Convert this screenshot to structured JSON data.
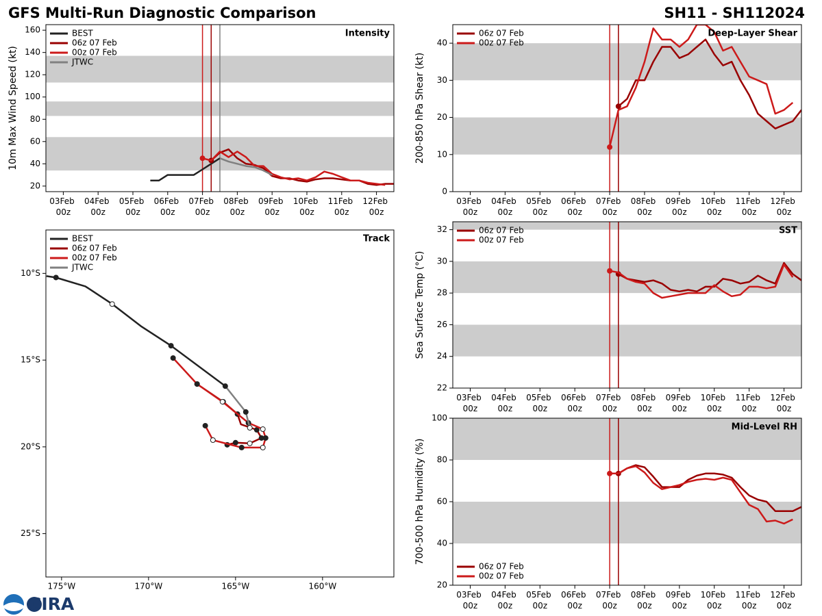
{
  "title": "GFS Multi-Run Diagnostic Comparison",
  "storm": "SH11 - SH112024",
  "logo": "CIRA",
  "chart_data": [
    {
      "type": "line",
      "title": "Intensity",
      "ylabel": "10m Max Wind Speed (kt)",
      "x": [
        "05Feb 12z",
        "05Feb 18z",
        "06Feb 00z",
        "06Feb 06z",
        "06Feb 12z",
        "06Feb 18z",
        "07Feb 00z",
        "07Feb 06z",
        "07Feb 12z",
        "07Feb 18z",
        "08Feb 00z",
        "08Feb 06z",
        "08Feb 12z",
        "08Feb 18z",
        "09Feb 00z",
        "09Feb 06z",
        "09Feb 12z",
        "09Feb 18z",
        "10Feb 00z",
        "10Feb 06z",
        "10Feb 12z",
        "10Feb 18z",
        "11Feb 00z",
        "11Feb 06z",
        "11Feb 12z",
        "11Feb 18z",
        "12Feb 00z",
        "12Feb 06z",
        "12Feb 12z"
      ],
      "series": [
        {
          "name": "BEST",
          "color": "#222222",
          "values": [
            25,
            25,
            30,
            30,
            30,
            30,
            35,
            40,
            45,
            null,
            null,
            null,
            null,
            null,
            null,
            null,
            null,
            null,
            null,
            null,
            null,
            null,
            null,
            null,
            null,
            null,
            null,
            null,
            null
          ]
        },
        {
          "name": "06z 07 Feb",
          "color": "#990000",
          "start_dot": true,
          "values": [
            null,
            null,
            null,
            null,
            null,
            null,
            null,
            43,
            50,
            53,
            45,
            40,
            39,
            36,
            29,
            27,
            27,
            25,
            24,
            26,
            27,
            27,
            26,
            25,
            25,
            22,
            21,
            22,
            22
          ]
        },
        {
          "name": "00z 07 Feb",
          "color": "#cc1a1a",
          "start_dot": true,
          "values": [
            null,
            null,
            null,
            null,
            null,
            null,
            45,
            43,
            51,
            46,
            51,
            46,
            38,
            38,
            31,
            28,
            26,
            27,
            25,
            28,
            33,
            31,
            28,
            25,
            25,
            23,
            22,
            21,
            null
          ]
        },
        {
          "name": "JTWC",
          "color": "#808080",
          "values": [
            null,
            null,
            null,
            null,
            null,
            null,
            null,
            null,
            45,
            42,
            40,
            38,
            37,
            34,
            30,
            null,
            null,
            null,
            null,
            null,
            null,
            null,
            null,
            null,
            null,
            null,
            null,
            null,
            null
          ]
        }
      ],
      "xlim": [
        "02Feb 12z",
        "12Feb 12z"
      ],
      "xticks": [
        "03Feb 00z",
        "04Feb 00z",
        "05Feb 00z",
        "06Feb 00z",
        "07Feb 00z",
        "08Feb 00z",
        "09Feb 00z",
        "10Feb 00z",
        "11Feb 00z",
        "12Feb 00z"
      ],
      "ylim": [
        15,
        165
      ],
      "yticks": [
        20,
        40,
        60,
        80,
        100,
        120,
        140,
        160
      ],
      "bands": [
        [
          34,
          64
        ],
        [
          83,
          96
        ],
        [
          113,
          137
        ]
      ],
      "vlines": [
        {
          "x": "07Feb 00z",
          "color": "#cc1a1a"
        },
        {
          "x": "07Feb 06z",
          "color": "#990000"
        },
        {
          "x": "07Feb 12z",
          "color": "#808080"
        }
      ],
      "legend": "upper left"
    },
    {
      "type": "line",
      "title": "Deep-Layer Shear",
      "ylabel": "200-850 hPa Shear (kt)",
      "x": [
        "07Feb 00z",
        "07Feb 06z",
        "07Feb 12z",
        "07Feb 18z",
        "08Feb 00z",
        "08Feb 06z",
        "08Feb 12z",
        "08Feb 18z",
        "09Feb 00z",
        "09Feb 06z",
        "09Feb 12z",
        "09Feb 18z",
        "10Feb 00z",
        "10Feb 06z",
        "10Feb 12z",
        "10Feb 18z",
        "11Feb 00z",
        "11Feb 06z",
        "11Feb 12z",
        "11Feb 18z",
        "12Feb 00z",
        "12Feb 06z",
        "12Feb 12z"
      ],
      "series": [
        {
          "name": "06z 07 Feb",
          "color": "#990000",
          "start_dot": true,
          "values": [
            null,
            23,
            25,
            30,
            30,
            35,
            39,
            39,
            36,
            37,
            39,
            41,
            37,
            34,
            35,
            30,
            26,
            21,
            19,
            17,
            18,
            19,
            22
          ]
        },
        {
          "name": "00z 07 Feb",
          "color": "#cc1a1a",
          "start_dot": true,
          "values": [
            12,
            22,
            23,
            28,
            35,
            44,
            41,
            41,
            39,
            41,
            45,
            45,
            43,
            38,
            39,
            35,
            31,
            30,
            29,
            21,
            22,
            24,
            null
          ]
        }
      ],
      "xlim": [
        "02Feb 12z",
        "12Feb 12z"
      ],
      "xticks": [
        "03Feb 00z",
        "04Feb 00z",
        "05Feb 00z",
        "06Feb 00z",
        "07Feb 00z",
        "08Feb 00z",
        "09Feb 00z",
        "10Feb 00z",
        "11Feb 00z",
        "12Feb 00z"
      ],
      "ylim": [
        0,
        45
      ],
      "yticks": [
        0,
        10,
        20,
        30,
        40
      ],
      "bands": [
        [
          10,
          20
        ],
        [
          30,
          40
        ]
      ],
      "vlines": [
        {
          "x": "07Feb 00z",
          "color": "#cc1a1a"
        },
        {
          "x": "07Feb 06z",
          "color": "#990000"
        }
      ],
      "legend": "upper left"
    },
    {
      "type": "track",
      "title": "Track",
      "series": [
        {
          "name": "BEST",
          "color": "#222222",
          "x": [
            -175.87,
            -175.32,
            -173.63,
            -172.09,
            -170.4,
            -168.71,
            -165.59
          ],
          "values": [
            -10.16,
            -10.24,
            -10.75,
            -11.77,
            -13.07,
            -14.17,
            -16.5
          ],
          "markers": [
            null,
            "filled",
            null,
            "hollow",
            null,
            "filled",
            null
          ]
        },
        {
          "name": "06z 07 Feb",
          "color": "#990000",
          "x": [
            -167.21,
            -165.71,
            -164.89,
            -164.69,
            -163.78,
            -163.51,
            -164.18,
            -165.0,
            -165.48
          ],
          "values": [
            -16.38,
            -17.4,
            -18.11,
            -18.7,
            -19.02,
            -19.49,
            -19.8,
            -19.76,
            -19.88
          ],
          "markers": [
            "filled",
            "hollow",
            "filled",
            null,
            "filled",
            "filled",
            "hollow",
            "filled",
            "filled"
          ]
        },
        {
          "name": "00z 07 Feb",
          "color": "#cc1a1a",
          "x": [
            -168.59,
            -167.21,
            -165.75,
            -164.26,
            -163.43,
            -163.27,
            -163.43,
            -164.65,
            -166.3,
            -166.74
          ],
          "values": [
            -14.88,
            -16.38,
            -17.4,
            -18.62,
            -18.98,
            -19.49,
            -20.04,
            -20.04,
            -19.61,
            -18.78
          ],
          "markers": [
            "filled",
            "filled",
            "hollow",
            "filled",
            "hollow",
            "filled",
            "hollow",
            "filled",
            "hollow",
            "filled"
          ]
        },
        {
          "name": "JTWC",
          "color": "#808080",
          "x": [
            -165.59,
            -164.41,
            -164.18
          ],
          "values": [
            -16.5,
            -17.99,
            -18.9
          ],
          "markers": [
            "filled",
            "filled",
            "hollow"
          ]
        }
      ],
      "xlim": [
        -175.9,
        -155.9
      ],
      "xticks": [
        {
          "value": -175,
          "label": "175°W"
        },
        {
          "value": -170,
          "label": "170°W"
        },
        {
          "value": -165,
          "label": "165°W"
        },
        {
          "value": -160,
          "label": "160°W"
        }
      ],
      "ylim": [
        -27.5,
        -7.5
      ],
      "yticks": [
        {
          "value": -10,
          "label": "10°S"
        },
        {
          "value": -15,
          "label": "15°S"
        },
        {
          "value": -20,
          "label": "20°S"
        },
        {
          "value": -25,
          "label": "25°S"
        }
      ],
      "legend": "upper left"
    },
    {
      "type": "line",
      "title": "SST",
      "ylabel": "Sea Surface Temp (°C)",
      "x": [
        "07Feb 00z",
        "07Feb 06z",
        "07Feb 12z",
        "07Feb 18z",
        "08Feb 00z",
        "08Feb 06z",
        "08Feb 12z",
        "08Feb 18z",
        "09Feb 00z",
        "09Feb 06z",
        "09Feb 12z",
        "09Feb 18z",
        "10Feb 00z",
        "10Feb 06z",
        "10Feb 12z",
        "10Feb 18z",
        "11Feb 00z",
        "11Feb 06z",
        "11Feb 12z",
        "11Feb 18z",
        "12Feb 00z",
        "12Feb 06z",
        "12Feb 12z"
      ],
      "series": [
        {
          "name": "06z 07 Feb",
          "color": "#990000",
          "start_dot": true,
          "values": [
            null,
            29.2,
            28.9,
            28.8,
            28.7,
            28.8,
            28.6,
            28.2,
            28.1,
            28.2,
            28.1,
            28.4,
            28.4,
            28.9,
            28.8,
            28.6,
            28.7,
            29.1,
            28.8,
            28.6,
            29.9,
            29.2,
            28.8
          ]
        },
        {
          "name": "00z 07 Feb",
          "color": "#cc1a1a",
          "start_dot": true,
          "values": [
            29.4,
            29.3,
            28.9,
            28.7,
            28.6,
            28.0,
            27.7,
            27.8,
            27.9,
            28.0,
            28.0,
            28.0,
            28.5,
            28.1,
            27.8,
            27.9,
            28.4,
            28.4,
            28.3,
            28.4,
            29.8,
            29.0,
            null
          ]
        }
      ],
      "xlim": [
        "02Feb 12z",
        "12Feb 12z"
      ],
      "xticks": [
        "03Feb 00z",
        "04Feb 00z",
        "05Feb 00z",
        "06Feb 00z",
        "07Feb 00z",
        "08Feb 00z",
        "09Feb 00z",
        "10Feb 00z",
        "11Feb 00z",
        "12Feb 00z"
      ],
      "ylim": [
        22,
        32.5
      ],
      "yticks": [
        22,
        24,
        26,
        28,
        30,
        32
      ],
      "bands": [
        [
          24,
          26
        ],
        [
          28,
          30
        ],
        [
          32,
          32.5
        ]
      ],
      "vlines": [
        {
          "x": "07Feb 00z",
          "color": "#cc1a1a"
        },
        {
          "x": "07Feb 06z",
          "color": "#990000"
        }
      ],
      "legend": "upper left"
    },
    {
      "type": "line",
      "title": "Mid-Level RH",
      "ylabel": "700-500 hPa Humidity (%)",
      "x": [
        "07Feb 00z",
        "07Feb 06z",
        "07Feb 12z",
        "07Feb 18z",
        "08Feb 00z",
        "08Feb 06z",
        "08Feb 12z",
        "08Feb 18z",
        "09Feb 00z",
        "09Feb 06z",
        "09Feb 12z",
        "09Feb 18z",
        "10Feb 00z",
        "10Feb 06z",
        "10Feb 12z",
        "10Feb 18z",
        "11Feb 00z",
        "11Feb 06z",
        "11Feb 12z",
        "11Feb 18z",
        "12Feb 00z",
        "12Feb 06z",
        "12Feb 12z"
      ],
      "series": [
        {
          "name": "06z 07 Feb",
          "color": "#990000",
          "start_dot": true,
          "values": [
            null,
            73.5,
            76,
            77.5,
            76.5,
            72,
            67,
            67,
            67,
            70.5,
            72.5,
            73.5,
            73.5,
            73,
            71.5,
            67,
            63,
            61,
            60,
            55.5,
            55.5,
            55.5,
            57.5
          ]
        },
        {
          "name": "00z 07 Feb",
          "color": "#cc1a1a",
          "start_dot": true,
          "values": [
            73.5,
            73.5,
            76,
            77,
            74,
            69,
            66,
            67,
            68,
            69.5,
            70.5,
            71,
            70.5,
            71.5,
            70.5,
            64.5,
            58.5,
            56.5,
            50.5,
            51,
            49.5,
            51.5,
            null
          ]
        }
      ],
      "xlim": [
        "02Feb 12z",
        "12Feb 12z"
      ],
      "xticks": [
        "03Feb 00z",
        "04Feb 00z",
        "05Feb 00z",
        "06Feb 00z",
        "07Feb 00z",
        "08Feb 00z",
        "09Feb 00z",
        "10Feb 00z",
        "11Feb 00z",
        "12Feb 00z"
      ],
      "ylim": [
        20,
        100
      ],
      "yticks": [
        20,
        40,
        60,
        80,
        100
      ],
      "bands": [
        [
          40,
          60
        ],
        [
          80,
          100
        ]
      ],
      "vlines": [
        {
          "x": "07Feb 00z",
          "color": "#cc1a1a"
        },
        {
          "x": "07Feb 06z",
          "color": "#990000"
        }
      ],
      "legend": "lower left"
    }
  ]
}
